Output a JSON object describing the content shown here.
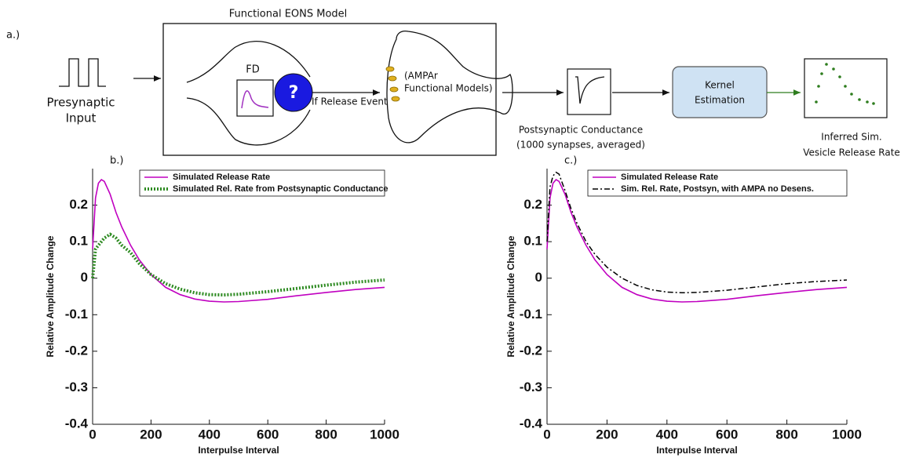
{
  "diagram": {
    "panel_label": "a.)",
    "title": "Functional EONS Model",
    "input_label": [
      "Presynaptic",
      "Input"
    ],
    "fd_label": "FD",
    "question": "?",
    "release_label": "If Release Event",
    "ampar_label": [
      "(AMPAr",
      "Functional Models)"
    ],
    "conductance_label": [
      "Postsynaptic Conductance",
      "(1000 synapses, averaged)"
    ],
    "kernel_label": [
      "Kernel",
      "Estimation"
    ],
    "output_label": [
      "Inferred Sim.",
      "Vesicle Release Rate"
    ]
  },
  "chart_data": [
    {
      "type": "line",
      "panel_label": "b.)",
      "xlabel": "Interpulse Interval",
      "ylabel": "Relative Amplitude Change",
      "x": [
        0,
        10,
        20,
        30,
        40,
        60,
        80,
        100,
        130,
        160,
        200,
        250,
        300,
        350,
        400,
        450,
        500,
        600,
        700,
        800,
        900,
        1000
      ],
      "series": [
        {
          "name": "Simulated Release Rate",
          "color": "#c000c0",
          "style": "solid",
          "values": [
            0.08,
            0.22,
            0.26,
            0.27,
            0.265,
            0.23,
            0.18,
            0.14,
            0.09,
            0.05,
            0.01,
            -0.025,
            -0.045,
            -0.057,
            -0.063,
            -0.065,
            -0.064,
            -0.058,
            -0.048,
            -0.039,
            -0.031,
            -0.025
          ]
        },
        {
          "name": "Simulated Rel. Rate from Postsynaptic Conductance",
          "color": "#2e8b22",
          "style": "dotted",
          "values": [
            0.0,
            0.08,
            0.09,
            0.1,
            0.11,
            0.12,
            0.11,
            0.09,
            0.07,
            0.04,
            0.01,
            -0.015,
            -0.03,
            -0.04,
            -0.045,
            -0.046,
            -0.044,
            -0.037,
            -0.028,
            -0.019,
            -0.011,
            -0.005
          ]
        }
      ],
      "xlim": [
        0,
        1000
      ],
      "xticks": [
        0,
        200,
        400,
        600,
        800,
        1000
      ],
      "ylim": [
        -0.4,
        0.3
      ],
      "yticks": [
        0.2,
        0.1,
        0,
        -0.1,
        -0.2,
        -0.3,
        -0.4
      ],
      "legend": "upper right",
      "grid": false
    },
    {
      "type": "line",
      "panel_label": "c.)",
      "xlabel": "Interpulse Interval",
      "ylabel": "Relative Amplitude Change",
      "x": [
        0,
        10,
        20,
        30,
        40,
        60,
        80,
        100,
        130,
        160,
        200,
        250,
        300,
        350,
        400,
        450,
        500,
        600,
        700,
        800,
        900,
        1000
      ],
      "series": [
        {
          "name": "Simulated Release Rate",
          "color": "#c000c0",
          "style": "solid",
          "values": [
            0.08,
            0.22,
            0.26,
            0.27,
            0.265,
            0.23,
            0.18,
            0.14,
            0.09,
            0.05,
            0.01,
            -0.025,
            -0.045,
            -0.057,
            -0.063,
            -0.065,
            -0.064,
            -0.058,
            -0.048,
            -0.039,
            -0.031,
            -0.025
          ]
        },
        {
          "name": "Sim. Rel. Rate, Postsyn, with AMPA no Desens.",
          "color": "#000000",
          "style": "dashdot",
          "values": [
            0.1,
            0.25,
            0.28,
            0.29,
            0.285,
            0.24,
            0.19,
            0.15,
            0.1,
            0.065,
            0.03,
            0.0,
            -0.02,
            -0.032,
            -0.038,
            -0.04,
            -0.039,
            -0.033,
            -0.024,
            -0.015,
            -0.009,
            -0.005
          ]
        }
      ],
      "xlim": [
        0,
        1000
      ],
      "xticks": [
        0,
        200,
        400,
        600,
        800,
        1000
      ],
      "ylim": [
        -0.4,
        0.3
      ],
      "yticks": [
        0.2,
        0.1,
        0,
        -0.1,
        -0.2,
        -0.3,
        -0.4
      ],
      "legend": "upper right",
      "grid": false
    }
  ]
}
